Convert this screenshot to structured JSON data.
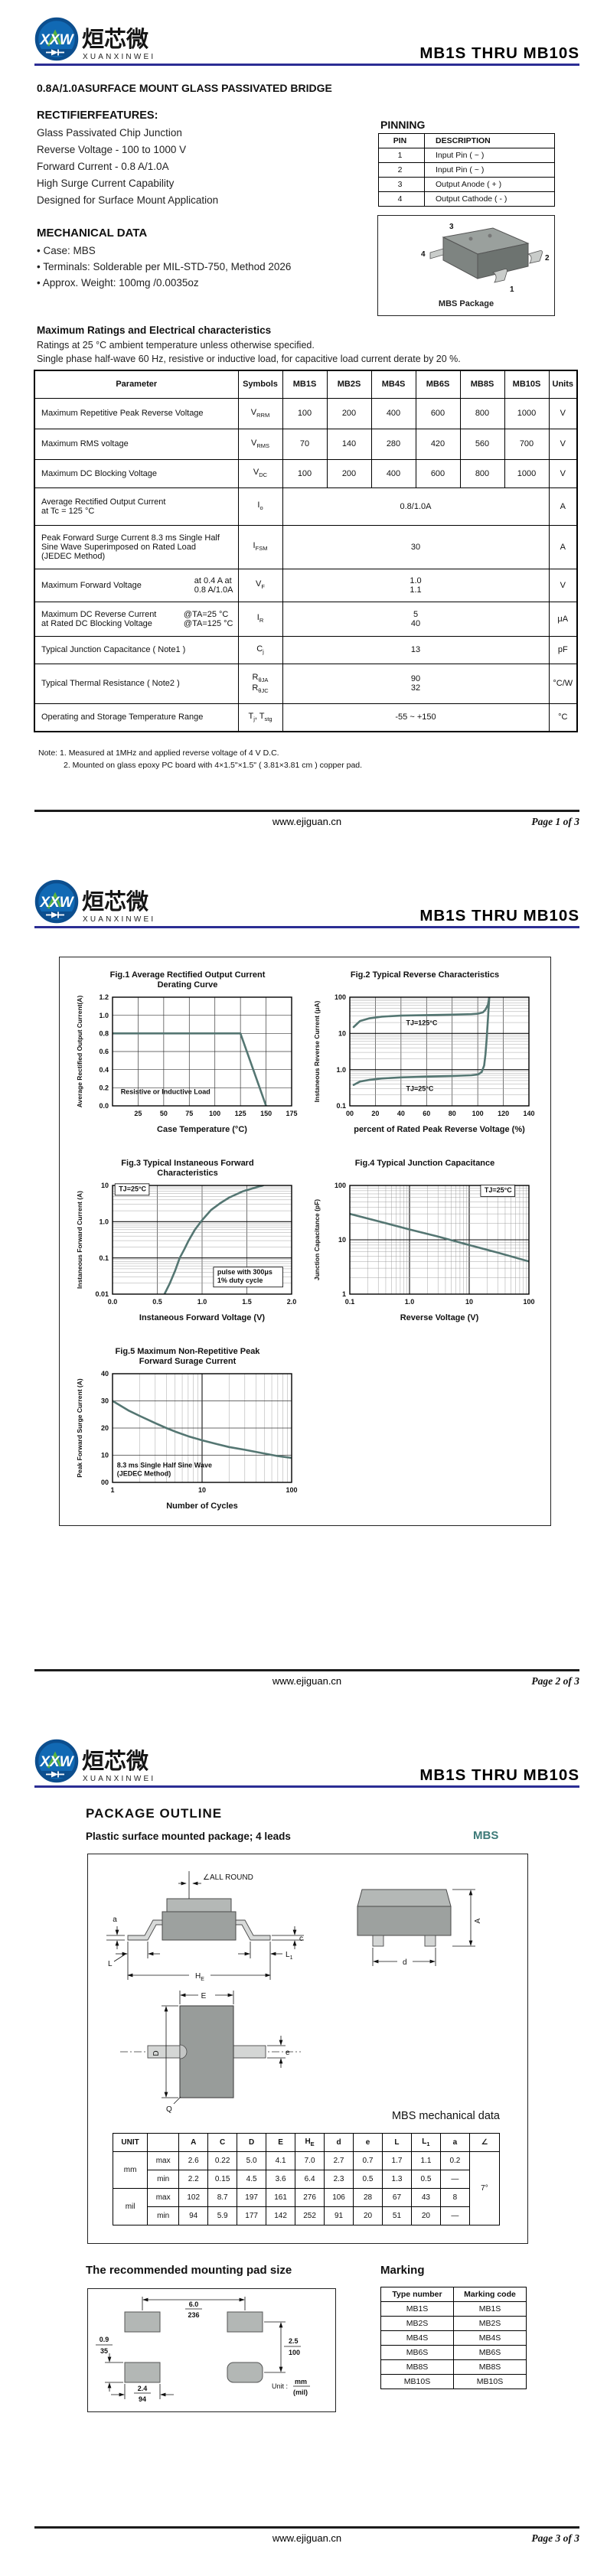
{
  "brand": {
    "logo_text": "XXW",
    "cn_name": "烜芯微",
    "en_name": "XUANXINWEI"
  },
  "product": {
    "title": "MB1S THRU MB10S",
    "subtitle": "0.8A/1.0ASURFACE MOUNT GLASS PASSIVATED BRIDGE"
  },
  "footer": {
    "site": "www.ejiguan.cn",
    "pages": [
      "Page 1 of 3",
      "Page 2 of 3",
      "Page 3 of 3"
    ]
  },
  "page1": {
    "features_heading": "RECTIFIERFEATURES:",
    "features": [
      "Glass Passivated Chip Junction",
      "Reverse Voltage - 100 to 1000 V",
      "Forward Current - 0.8 A/1.0A",
      "High Surge Current Capability",
      "Designed for Surface Mount Application"
    ],
    "pinning": {
      "heading": "PINNING",
      "headers": [
        "PIN",
        "DESCRIPTION"
      ],
      "rows": [
        [
          "1",
          "Input Pin ( ~ )"
        ],
        [
          "2",
          "Input Pin ( ~ )"
        ],
        [
          "3",
          "Output Anode ( + )"
        ],
        [
          "4",
          "Output Cathode ( - )"
        ]
      ],
      "package_caption": "MBS Package",
      "pin_labels": [
        "1",
        "2",
        "3",
        "4"
      ]
    },
    "mechanical": {
      "heading": "MECHANICAL DATA",
      "items": [
        "• Case: MBS",
        "• Terminals: Solderable per MIL-STD-750, Method 2026",
        "• Approx. Weight: 100mg /0.0035oz"
      ]
    },
    "ratings": {
      "heading": "Maximum Ratings and Electrical characteristics",
      "conditions": [
        "Ratings at 25 °C ambient temperature unless otherwise specified.",
        "Single phase half-wave 60 Hz, resistive or inductive load, for capacitive load current derate by 20 %."
      ],
      "headers": [
        "Parameter",
        "Symbols",
        "MB1S",
        "MB2S",
        "MB4S",
        "MB6S",
        "MB8S",
        "MB10S",
        "Units"
      ],
      "rows": [
        {
          "param": [
            "Maximum Repetitive Peak Reverse Voltage"
          ],
          "sym": [
            [
              "V",
              "RRM"
            ]
          ],
          "cells": [
            "100",
            "200",
            "400",
            "600",
            "800",
            "1000"
          ],
          "unit": "V"
        },
        {
          "param": [
            "Maximum RMS voltage"
          ],
          "sym": [
            [
              "V",
              "RMS"
            ]
          ],
          "cells": [
            "70",
            "140",
            "280",
            "420",
            "560",
            "700"
          ],
          "unit": "V"
        },
        {
          "param": [
            "Maximum DC Blocking Voltage"
          ],
          "sym": [
            [
              "V",
              "DC"
            ]
          ],
          "cells": [
            "100",
            "200",
            "400",
            "600",
            "800",
            "1000"
          ],
          "unit": "V"
        },
        {
          "param": [
            "Average Rectified Output Current",
            "at Tc = 125 °C"
          ],
          "sym": [
            [
              "I",
              "o"
            ]
          ],
          "span": [
            "0.8/1.0A"
          ],
          "unit": "A"
        },
        {
          "param": [
            "Peak Forward Surge Current 8.3 ms Single Half",
            "Sine Wave Superimposed on Rated Load",
            "(JEDEC Method)"
          ],
          "sym": [
            [
              "I",
              "FSM"
            ]
          ],
          "span": [
            "30"
          ],
          "unit": "A"
        },
        {
          "param": [
            "Maximum  Forward Voltage"
          ],
          "param_right": [
            "at 0.4 A at",
            "0.8 A/1.0A"
          ],
          "sym": [
            [
              "V",
              "F"
            ]
          ],
          "span": [
            "1.0",
            "1.1"
          ],
          "unit": "V"
        },
        {
          "param": [
            "Maximum DC Reverse Current",
            "at Rated DC Blocking Voltage"
          ],
          "param_right": [
            "@TA=25 °C",
            "@TA=125 °C"
          ],
          "sym": [
            [
              "I",
              "R"
            ]
          ],
          "span": [
            "5",
            "40"
          ],
          "unit": "μA"
        },
        {
          "param": [
            "Typical Junction Capacitance ( Note1 )"
          ],
          "sym": [
            [
              "C",
              "j"
            ]
          ],
          "span": [
            "13"
          ],
          "unit": "pF"
        },
        {
          "param": [
            "Typical Thermal Resistance ( Note2 )"
          ],
          "sym": [
            [
              "R",
              "θJA"
            ],
            [
              "R",
              "θJC"
            ]
          ],
          "sym_stack": true,
          "span": [
            "90",
            "32"
          ],
          "unit": "°C/W"
        },
        {
          "param": [
            "Operating and Storage Temperature Range"
          ],
          "sym": [
            [
              "T",
              "j"
            ],
            [
              ", T",
              "stg"
            ]
          ],
          "span": [
            "-55 ~ +150"
          ],
          "unit": "°C"
        }
      ],
      "notes": [
        "Note:  1. Measured at 1MHz and applied reverse voltage of 4 V D.C.",
        "2. Mounted on glass epoxy PC board with 4×1.5\"×1.5\" ( 3.81×3.81 cm ) copper pad."
      ]
    }
  },
  "chart_data": [
    {
      "id": "fig1",
      "type": "line",
      "title": [
        "Fig.1 Average Rectified Output Current",
        "Derating Curve"
      ],
      "xlabel": "Case Temperature (°C)",
      "ylabel": "Average Rectified Output Current(A)",
      "x": {
        "scale": "linear",
        "min": 0,
        "max": 175,
        "ticks": [
          25,
          50,
          75,
          100,
          125,
          150,
          175
        ],
        "tick_labels": [
          "25",
          "50",
          "75",
          "100",
          "125",
          "150",
          "175"
        ]
      },
      "y": {
        "scale": "linear",
        "min": 0,
        "max": 1.2,
        "ticks": [
          0,
          0.2,
          0.4,
          0.6,
          0.8,
          1,
          1.2
        ],
        "tick_labels": [
          "0.0",
          "0.2",
          "0.4",
          "0.6",
          "0.8",
          "1.0",
          "1.2"
        ]
      },
      "series": [
        {
          "name": "output-current-derating",
          "points": [
            [
              0,
              0.8
            ],
            [
              125,
              0.8
            ],
            [
              150,
              0
            ]
          ]
        }
      ],
      "annotations": [
        {
          "text": "Resistive or Inductive Load",
          "x": 8,
          "y": 0.13
        }
      ]
    },
    {
      "id": "fig2",
      "type": "line",
      "title": [
        "Fig.2 Typical Reverse Characteristics"
      ],
      "xlabel": "percent of Rated Peak Reverse Voltage (%)",
      "ylabel": "Instaneous Reverse Current (μA)",
      "x": {
        "scale": "linear",
        "min": 0,
        "max": 140,
        "ticks": [
          0,
          20,
          40,
          60,
          80,
          100,
          120,
          140
        ],
        "tick_labels": [
          "00",
          "20",
          "40",
          "60",
          "80",
          "100",
          "120",
          "140"
        ]
      },
      "y": {
        "scale": "log",
        "min": 0.1,
        "max": 100,
        "ticks": [
          0.1,
          1,
          10,
          100
        ],
        "tick_labels": [
          "0.1",
          "1.0",
          "10",
          "100"
        ]
      },
      "series": [
        {
          "name": "TJ=125°C",
          "points": [
            [
              3,
              15
            ],
            [
              8,
              22
            ],
            [
              15,
              26
            ],
            [
              25,
              29
            ],
            [
              40,
              31
            ],
            [
              60,
              32
            ],
            [
              80,
              33
            ],
            [
              95,
              34
            ],
            [
              100,
              35
            ],
            [
              104,
              38
            ],
            [
              106,
              45
            ],
            [
              108,
              62
            ],
            [
              109,
              100
            ]
          ]
        },
        {
          "name": "TJ=25°C",
          "points": [
            [
              3,
              0.38
            ],
            [
              8,
              0.47
            ],
            [
              15,
              0.52
            ],
            [
              25,
              0.57
            ],
            [
              40,
              0.61
            ],
            [
              60,
              0.64
            ],
            [
              80,
              0.67
            ],
            [
              95,
              0.7
            ],
            [
              100,
              0.73
            ],
            [
              103,
              0.85
            ],
            [
              105,
              1.3
            ],
            [
              106,
              2.6
            ],
            [
              107,
              7
            ],
            [
              108,
              26
            ],
            [
              109,
              100
            ]
          ]
        }
      ],
      "annotations": [
        {
          "text": "TJ=125°C",
          "x": 44,
          "y": 17
        },
        {
          "text": "TJ=25°C",
          "x": 44,
          "y": 0.26
        }
      ]
    },
    {
      "id": "fig3",
      "type": "line",
      "title": [
        "Fig.3 Typical Instaneous Forward",
        "Characteristics"
      ],
      "xlabel": "Instaneous Forward Voltage (V)",
      "ylabel": "Instaneous Forward Current (A)",
      "x": {
        "scale": "linear",
        "min": 0,
        "max": 2,
        "ticks": [
          0,
          0.5,
          1,
          1.5,
          2
        ],
        "tick_labels": [
          "0.0",
          "0.5",
          "1.0",
          "1.5",
          "2.0"
        ]
      },
      "y": {
        "scale": "log",
        "min": 0.01,
        "max": 10,
        "ticks": [
          0.01,
          0.1,
          1,
          10
        ],
        "tick_labels": [
          "0.01",
          "0.1",
          "1.0",
          "10"
        ]
      },
      "series": [
        {
          "name": "forward-characteristic",
          "points": [
            [
              0.58,
              0.01
            ],
            [
              0.64,
              0.02
            ],
            [
              0.7,
              0.045
            ],
            [
              0.75,
              0.1
            ],
            [
              0.8,
              0.17
            ],
            [
              0.85,
              0.3
            ],
            [
              0.92,
              0.6
            ],
            [
              1,
              1.1
            ],
            [
              1.1,
              2.1
            ],
            [
              1.2,
              3.2
            ],
            [
              1.3,
              4.6
            ],
            [
              1.45,
              6.8
            ],
            [
              1.6,
              8.8
            ],
            [
              1.68,
              10
            ]
          ]
        }
      ],
      "annotations": [
        {
          "text": "TJ=25°C",
          "x": 0.07,
          "y": 7,
          "boxed": true
        },
        {
          "lines": [
            "pulse with 300μs",
            "1% duty cycle"
          ],
          "x": 1.17,
          "y": 0.035,
          "boxed": true
        }
      ]
    },
    {
      "id": "fig4",
      "type": "line",
      "title": [
        "Fig.4 Typical Junction Capacitance"
      ],
      "xlabel": "Reverse Voltage (V)",
      "ylabel": "Junction Capacitance (pF)",
      "x": {
        "scale": "log",
        "min": 0.1,
        "max": 100,
        "ticks": [
          0.1,
          1,
          10,
          100
        ],
        "tick_labels": [
          "0.1",
          "1.0",
          "10",
          "100"
        ]
      },
      "y": {
        "scale": "log",
        "min": 1,
        "max": 100,
        "ticks": [
          1,
          10,
          100
        ],
        "tick_labels": [
          "1",
          "10",
          "100"
        ]
      },
      "series": [
        {
          "name": "junction-capacitance",
          "points": [
            [
              0.1,
              30
            ],
            [
              0.3,
              22
            ],
            [
              1,
              15.5
            ],
            [
              3,
              11.5
            ],
            [
              10,
              8
            ],
            [
              30,
              5.8
            ],
            [
              100,
              4
            ]
          ]
        }
      ],
      "annotations": [
        {
          "text": "TJ=25°C",
          "x": 18,
          "y": 75,
          "boxed": true
        }
      ]
    },
    {
      "id": "fig5",
      "type": "line",
      "title": [
        "Fig.5 Maximum Non-Repetitive Peak",
        "Forward Surage Current"
      ],
      "xlabel": "Number of Cycles",
      "ylabel": "Peak Forward Surge Current (A)",
      "x": {
        "scale": "log",
        "min": 1,
        "max": 100,
        "ticks": [
          1,
          10,
          100
        ],
        "tick_labels": [
          "1",
          "10",
          "100"
        ]
      },
      "y": {
        "scale": "linear",
        "min": 0,
        "max": 40,
        "ticks": [
          0,
          10,
          20,
          30,
          40
        ],
        "tick_labels": [
          "00",
          "10",
          "20",
          "30",
          "40"
        ]
      },
      "series": [
        {
          "name": "surge-current",
          "points": [
            [
              1,
              30
            ],
            [
              1.5,
              26.5
            ],
            [
              2,
              24.5
            ],
            [
              3,
              21.8
            ],
            [
              4,
              20
            ],
            [
              5,
              18.7
            ],
            [
              7,
              17
            ],
            [
              10,
              15.5
            ],
            [
              15,
              14
            ],
            [
              20,
              13
            ],
            [
              30,
              12
            ],
            [
              50,
              10.6
            ],
            [
              70,
              9.7
            ],
            [
              100,
              9
            ]
          ]
        }
      ],
      "annotations": [
        {
          "lines": [
            "8.3 ms Single Half Sine Wave",
            "(JEDEC Method)"
          ],
          "x": 1.12,
          "y": 5.5
        }
      ]
    }
  ],
  "page3": {
    "outline_heading": "PACKAGE OUTLINE",
    "outline_subtitle": "Plastic surface mounted package; 4 leads",
    "package_name": "MBS",
    "outline_labels": {
      "all_round": "∠ALL ROUND",
      "a": "a",
      "c": "c",
      "l": "L",
      "l1_base": "L",
      "l1_sub": "1",
      "he_base": "H",
      "he_sub": "E",
      "a_dim": "A",
      "d": "d",
      "e_top": "E",
      "e_small": "e",
      "d_len": "D",
      "q": "Q"
    },
    "mech_table": {
      "title": "MBS mechanical data",
      "col_headers": [
        {
          "t": "UNIT"
        },
        {
          "t": ""
        },
        {
          "t": "A"
        },
        {
          "t": "C"
        },
        {
          "t": "D"
        },
        {
          "t": "E"
        },
        {
          "t": "H",
          "s": "E"
        },
        {
          "t": "d"
        },
        {
          "t": "e"
        },
        {
          "t": "L"
        },
        {
          "t": "L",
          "s": "1"
        },
        {
          "t": "a"
        },
        {
          "t": "∠"
        }
      ],
      "unit_groups": [
        "mm",
        "mil"
      ],
      "row_kinds": [
        "max",
        "min",
        "max",
        "min"
      ],
      "rows": [
        [
          "2.6",
          "0.22",
          "5.0",
          "4.1",
          "7.0",
          "2.7",
          "0.7",
          "1.7",
          "1.1",
          "0.2"
        ],
        [
          "2.2",
          "0.15",
          "4.5",
          "3.6",
          "6.4",
          "2.3",
          "0.5",
          "1.3",
          "0.5",
          "—"
        ],
        [
          "102",
          "8.7",
          "197",
          "161",
          "276",
          "106",
          "28",
          "67",
          "43",
          "8"
        ],
        [
          "94",
          "5.9",
          "177",
          "142",
          "252",
          "91",
          "20",
          "51",
          "20",
          "—"
        ]
      ],
      "angle": "7°"
    },
    "pad": {
      "heading": "The recommended mounting pad size",
      "top_mm": "6.0",
      "top_mil": "236",
      "right_mm": "2.5",
      "right_mil": "100",
      "left_mm": "0.9",
      "left_mil": "35",
      "bottom_mm": "2.4",
      "bottom_mil": "94",
      "unit_prefix": "Unit :",
      "unit_mm": "mm",
      "unit_mil": "(mil)"
    },
    "marking": {
      "heading": "Marking",
      "headers": [
        "Type number",
        "Marking code"
      ],
      "rows": [
        [
          "MB1S",
          "MB1S"
        ],
        [
          "MB2S",
          "MB2S"
        ],
        [
          "MB4S",
          "MB4S"
        ],
        [
          "MB6S",
          "MB6S"
        ],
        [
          "MB8S",
          "MB8S"
        ],
        [
          "MB10S",
          "MB10S"
        ]
      ]
    }
  },
  "theme": {
    "accent_navy": "#2b2d94",
    "curve_color": "#547672",
    "logo_blue": "#1169b4",
    "logo_dark_blue": "#0c4e8e",
    "logo_green": "#58b33f",
    "mbs_teal": "#3d7a78"
  }
}
